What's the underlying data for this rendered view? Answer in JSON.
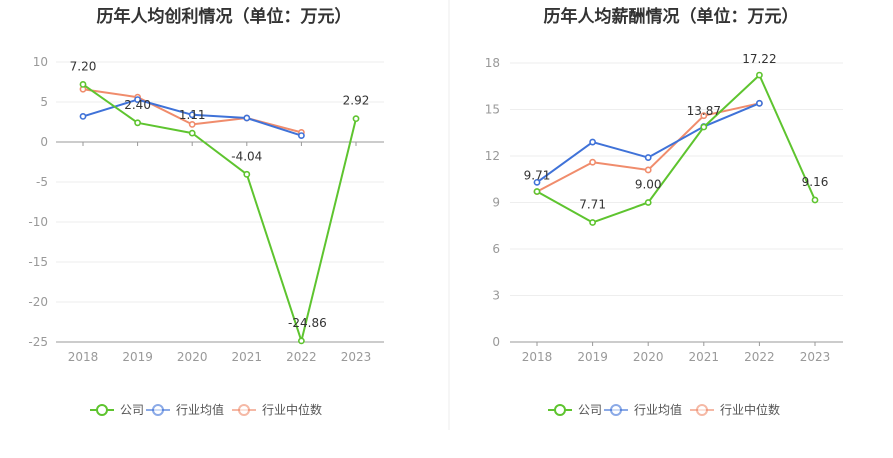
{
  "colors": {
    "company": "#5ec42f",
    "industry_avg": "#3f72d8",
    "industry_median": "#f08c6c"
  },
  "chart_data": [
    {
      "type": "line",
      "title": "历年人均创利情况（单位：万元）",
      "categories": [
        "2018",
        "2019",
        "2020",
        "2021",
        "2022",
        "2023"
      ],
      "ylim": [
        -25,
        10
      ],
      "yticks": [
        10,
        5,
        0,
        -5,
        -10,
        -15,
        -20,
        -25
      ],
      "ytick_labels": [
        "10",
        "5",
        "0",
        "-5",
        "-10",
        "-15",
        "-20",
        "-25"
      ],
      "series": [
        {
          "name": "公司",
          "key": "company",
          "values": [
            7.2,
            2.4,
            1.11,
            -4.04,
            -24.86,
            2.92
          ],
          "labels": [
            "7.20",
            "2.40",
            "1.11",
            "-4.04",
            "-24.86",
            "2.92"
          ]
        },
        {
          "name": "行业均值",
          "key": "industry_avg",
          "values": [
            3.2,
            5.3,
            3.4,
            3.0,
            0.8,
            null
          ]
        },
        {
          "name": "行业中位数",
          "key": "industry_median",
          "values": [
            6.6,
            5.6,
            2.2,
            3.0,
            1.2,
            null
          ]
        }
      ],
      "legend_position": "bottom"
    },
    {
      "type": "line",
      "title": "历年人均薪酬情况（单位：万元）",
      "categories": [
        "2018",
        "2019",
        "2020",
        "2021",
        "2022",
        "2023"
      ],
      "ylim": [
        0,
        18
      ],
      "yticks": [
        18,
        15,
        12,
        9,
        6,
        3,
        0
      ],
      "ytick_labels": [
        "18",
        "15",
        "12",
        "9",
        "6",
        "3",
        "0"
      ],
      "series": [
        {
          "name": "公司",
          "key": "company",
          "values": [
            9.71,
            7.71,
            9.0,
            13.87,
            17.22,
            9.16
          ],
          "labels": [
            "9.71",
            "7.71",
            "9.00",
            "13.87",
            "17.22",
            "9.16"
          ]
        },
        {
          "name": "行业均值",
          "key": "industry_avg",
          "values": [
            10.3,
            12.9,
            11.9,
            13.9,
            15.4,
            null
          ]
        },
        {
          "name": "行业中位数",
          "key": "industry_median",
          "values": [
            9.7,
            11.6,
            11.1,
            14.6,
            15.4,
            null
          ]
        }
      ],
      "legend_position": "bottom"
    }
  ]
}
